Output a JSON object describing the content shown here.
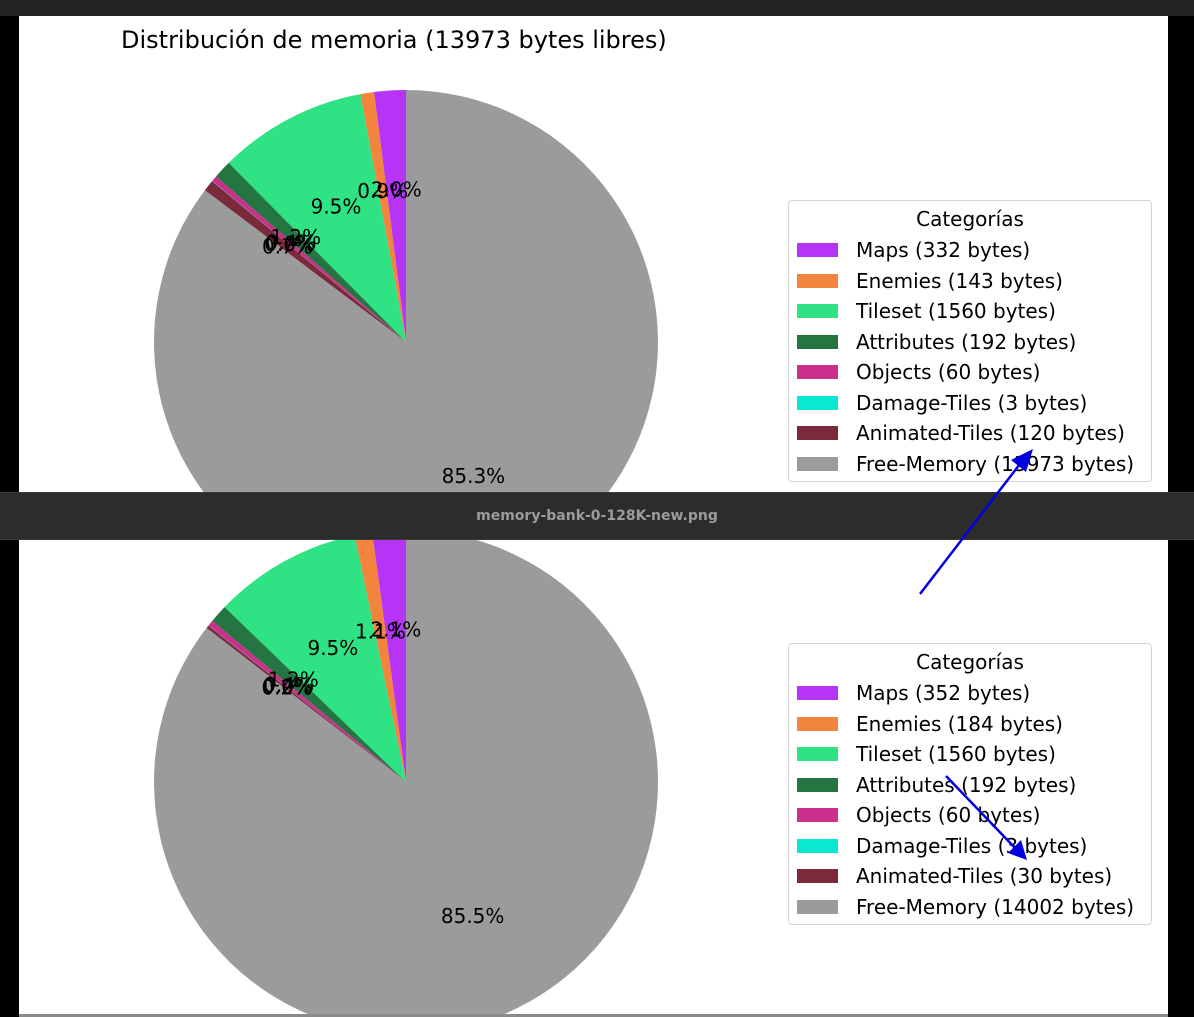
{
  "file_name": "memory-bank-0-128K-new.png",
  "colors": {
    "Maps": "#b534f5",
    "Enemies": "#f2843e",
    "Tileset": "#2fe283",
    "Attributes": "#247541",
    "Objects": "#cc2f8b",
    "Damage-Tiles": "#0ae7d2",
    "Animated-Tiles": "#7b2a3b",
    "Free-Memory": "#9b9b9b",
    "annotation_arrow": "#0000e0"
  },
  "chart_data": [
    {
      "type": "pie",
      "title": "Distribución de memoria (13973 bytes libres)",
      "legend_title": "Categorías",
      "legend_placement": "right",
      "categories": [
        "Maps",
        "Enemies",
        "Tileset",
        "Attributes",
        "Objects",
        "Damage-Tiles",
        "Animated-Tiles",
        "Free-Memory"
      ],
      "values": [
        332,
        143,
        1560,
        192,
        60,
        3,
        120,
        13973
      ],
      "legend_labels": [
        "Maps (332 bytes)",
        "Enemies (143 bytes)",
        "Tileset (1560 bytes)",
        "Attributes (192 bytes)",
        "Objects (60 bytes)",
        "Damage-Tiles (3 bytes)",
        "Animated-Tiles (120 bytes)",
        "Free-Memory (13973 bytes)"
      ],
      "percent_labels": [
        "2.0%",
        "0.9%",
        "9.5%",
        "1.2%",
        "0.4%",
        "0.0%",
        "0.7%",
        "85.3%"
      ]
    },
    {
      "type": "pie",
      "title": "",
      "legend_title": "Categorías",
      "legend_placement": "right",
      "categories": [
        "Maps",
        "Enemies",
        "Tileset",
        "Attributes",
        "Objects",
        "Damage-Tiles",
        "Animated-Tiles",
        "Free-Memory"
      ],
      "values": [
        352,
        184,
        1560,
        192,
        60,
        3,
        30,
        14002
      ],
      "legend_labels": [
        "Maps (352 bytes)",
        "Enemies (184 bytes)",
        "Tileset (1560 bytes)",
        "Attributes (192 bytes)",
        "Objects (60 bytes)",
        "Damage-Tiles (3 bytes)",
        "Animated-Tiles (30 bytes)",
        "Free-Memory (14002 bytes)"
      ],
      "percent_labels": [
        "2.1%",
        "1.1%",
        "9.5%",
        "1.2%",
        "0.4%",
        "0.0%",
        "0.2%",
        "85.5%"
      ]
    }
  ]
}
